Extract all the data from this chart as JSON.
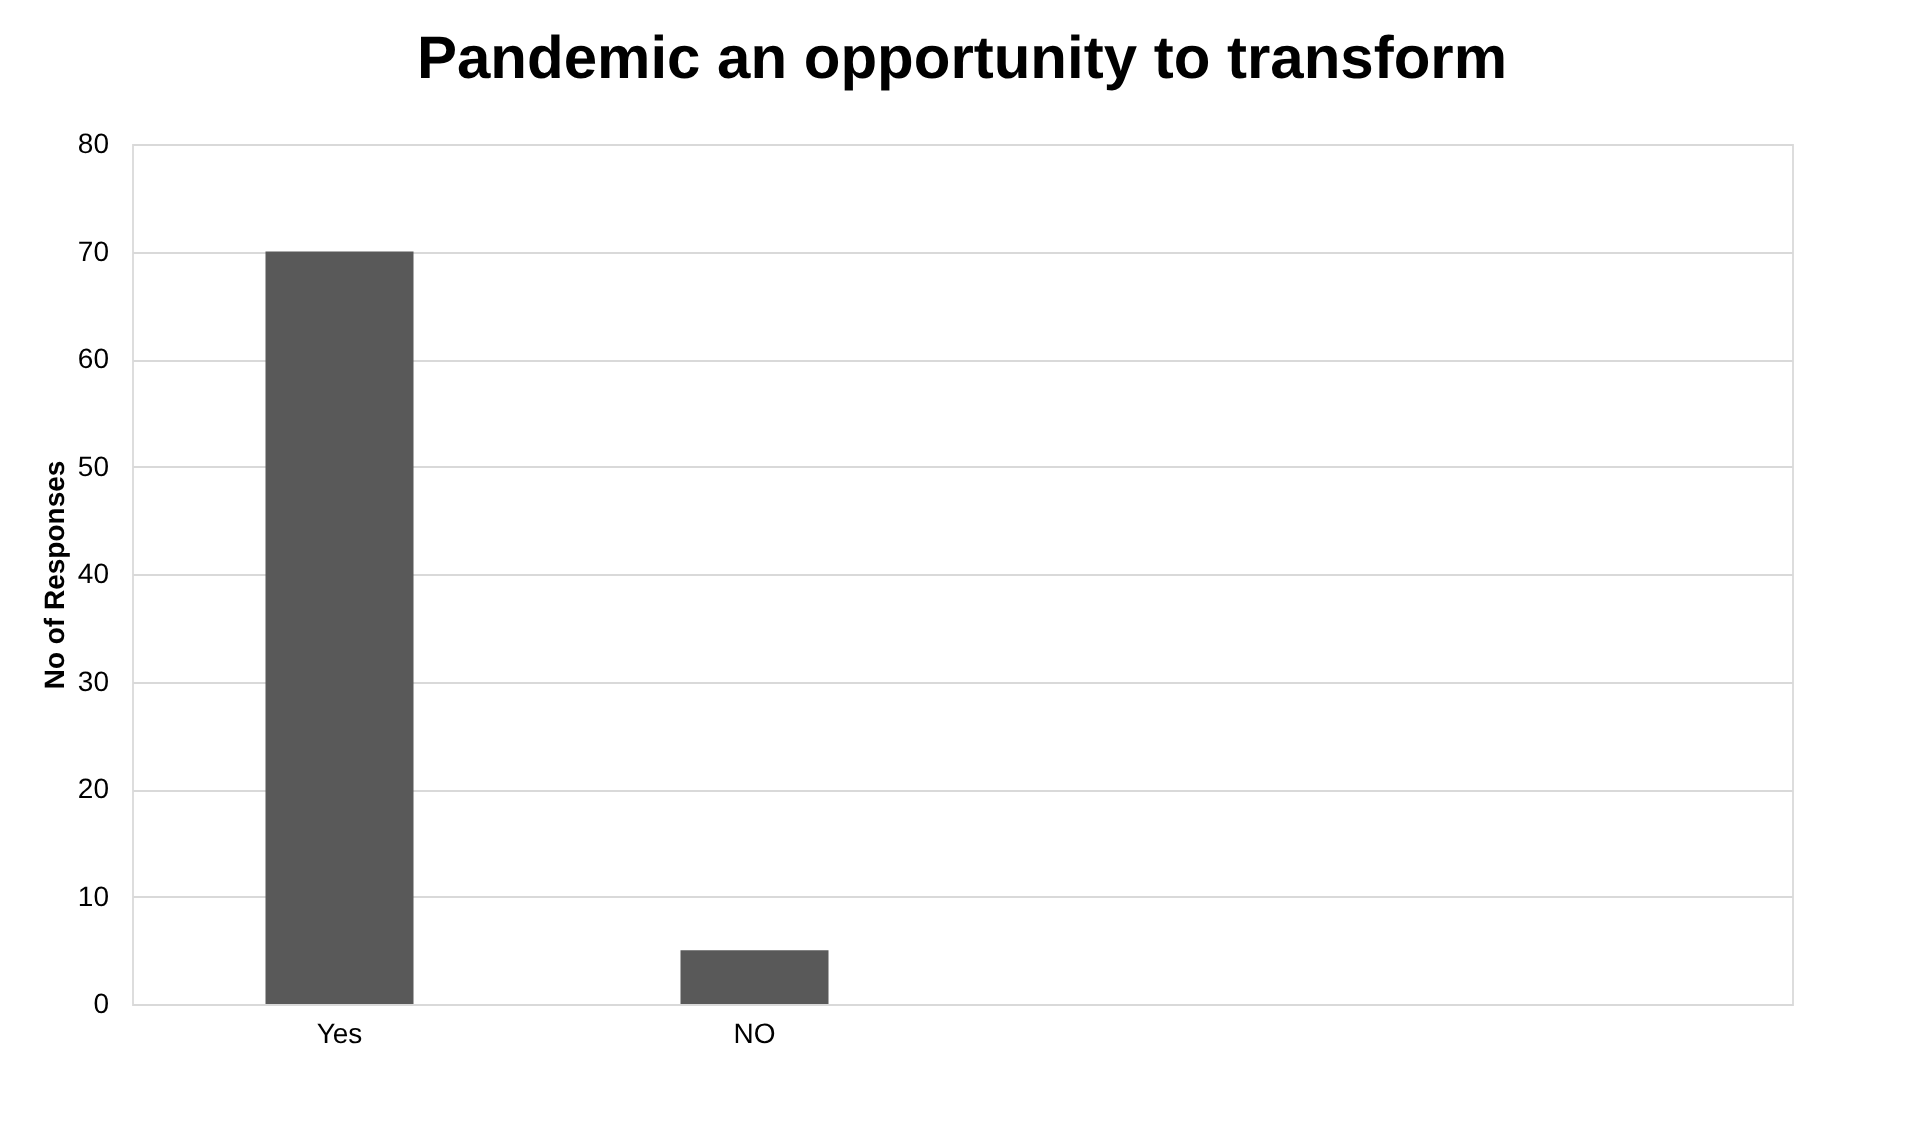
{
  "chart_data": {
    "type": "bar",
    "title": "Pandemic an opportunity to transform",
    "ylabel": "No of Responses",
    "categories": [
      "Yes",
      "NO",
      null,
      null
    ],
    "values": [
      70,
      5,
      null,
      null
    ],
    "color": "#595959",
    "ylim": [
      0,
      80
    ],
    "yticks": [
      0,
      10,
      20,
      30,
      40,
      50,
      60,
      70,
      80
    ],
    "grid": "y"
  }
}
